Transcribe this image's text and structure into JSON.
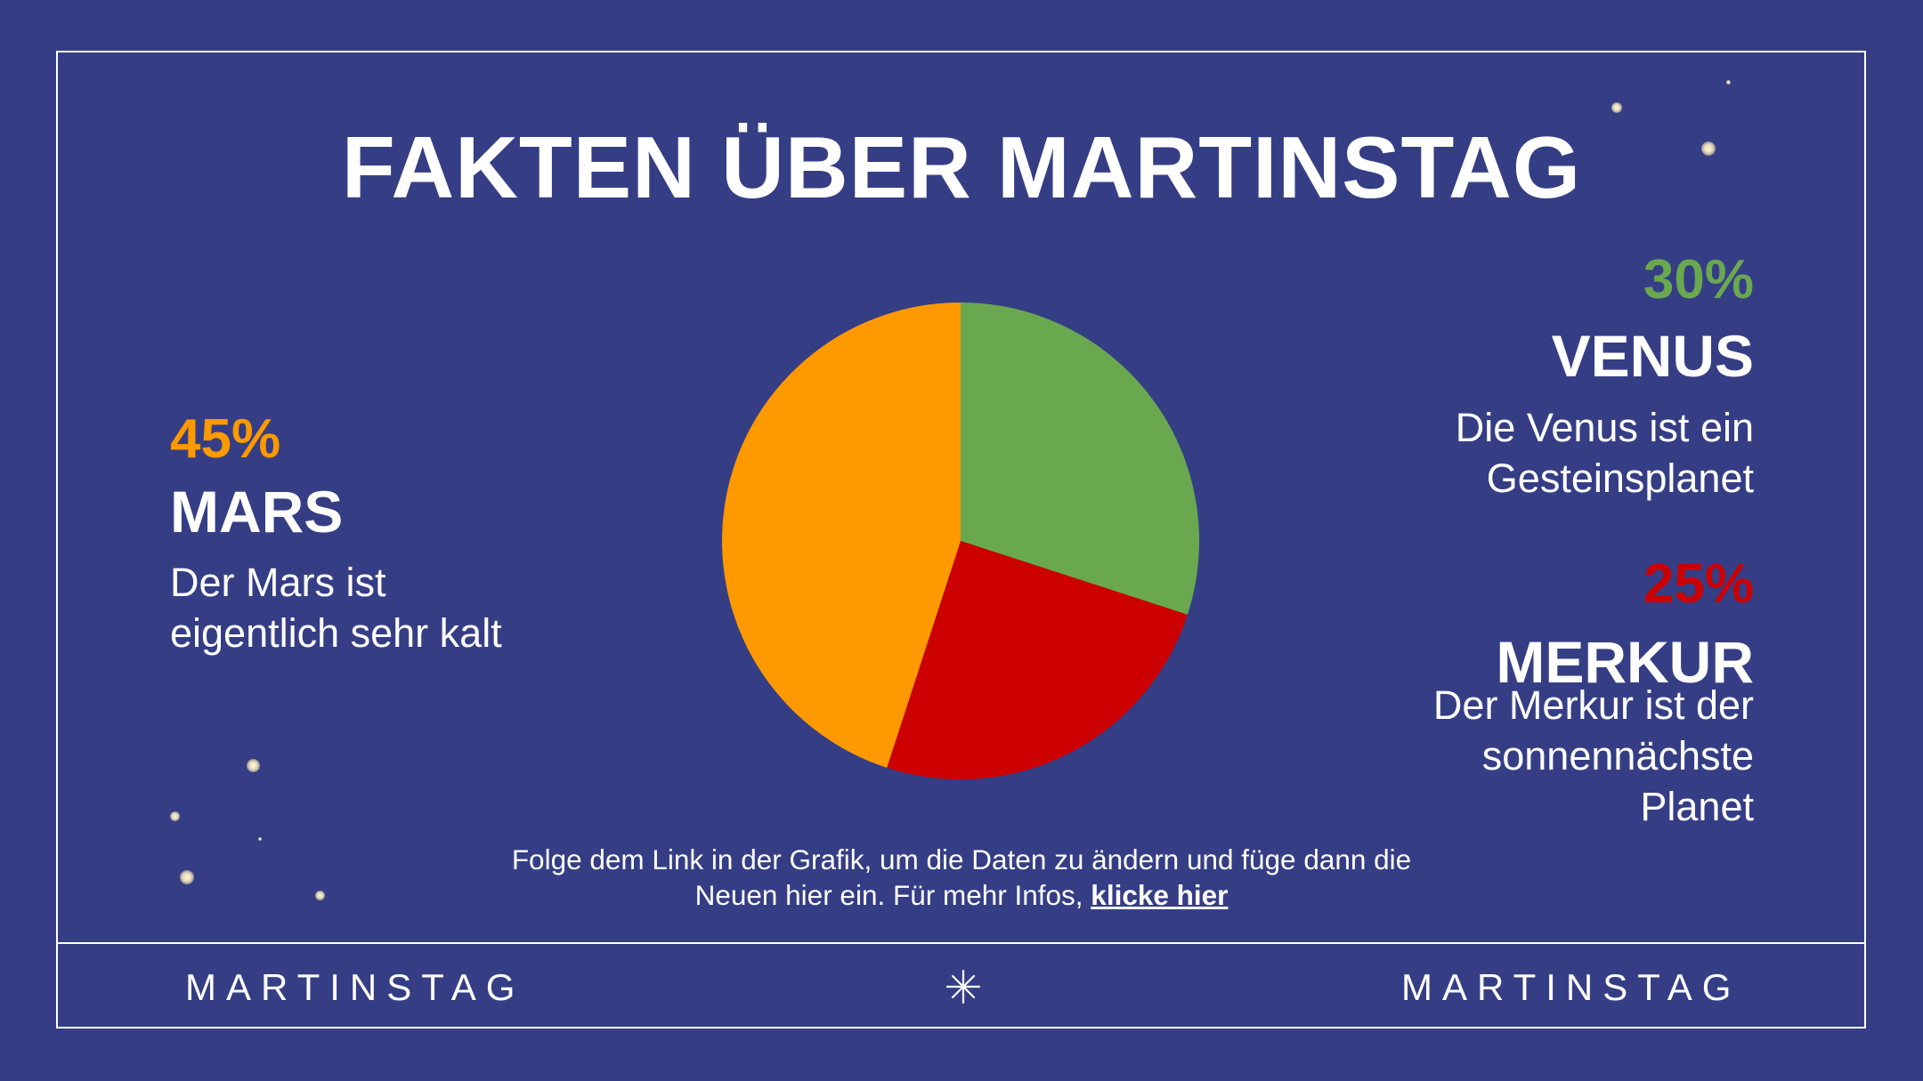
{
  "slide": {
    "title": "FAKTEN ÜBER MARTINSTAG",
    "background": "#353e85",
    "note_text": "Folge dem Link in der Grafik, um die Daten zu ändern und füge dann die Neuen hier ein. Für mehr Infos, ",
    "note_link": "klicke hier",
    "footer_left": "MARTINSTAG",
    "footer_right": "MARTINSTAG",
    "footer_icon": "sparkle-icon"
  },
  "planets": {
    "mars": {
      "percent": "45%",
      "name": "MARS",
      "desc_line1": "Der Mars ist",
      "desc_line2": "eigentlich sehr kalt",
      "color": "#ff9900"
    },
    "venus": {
      "percent": "30%",
      "name": "VENUS",
      "desc_line1": "Die Venus ist ein",
      "desc_line2": "Gesteinsplanet",
      "color": "#6aa84f"
    },
    "merkur": {
      "percent": "25%",
      "name": "MERKUR",
      "desc_line1": "Der Merkur ist der",
      "desc_line2": "sonnennächste",
      "desc_line3": "Planet",
      "color": "#cc0000"
    }
  },
  "chart_data": {
    "type": "pie",
    "categories": [
      "Venus",
      "Merkur",
      "Mars"
    ],
    "values": [
      30,
      25,
      45
    ],
    "colors": [
      "#6aa84f",
      "#cc0000",
      "#ff9900"
    ],
    "start": "12 o'clock",
    "direction": "clockwise",
    "legend": "none"
  }
}
